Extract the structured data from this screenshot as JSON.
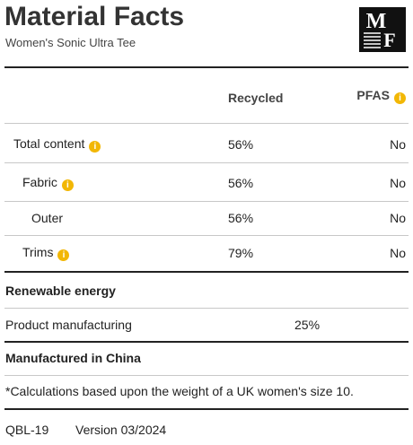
{
  "header": {
    "title": "Material Facts",
    "subtitle": "Women's Sonic Ultra Tee",
    "logo": [
      "M",
      "F"
    ]
  },
  "table": {
    "columns": [
      "Recycled",
      "PFAS"
    ],
    "rows": [
      [
        "Total content",
        "56%",
        "No"
      ],
      [
        "Fabric",
        "56%",
        "No"
      ],
      [
        "Outer",
        "56%",
        "No"
      ],
      [
        "Trims",
        "79%",
        "No"
      ]
    ]
  },
  "renewable": {
    "title": "Renewable energy",
    "rows": [
      [
        "Product manufacturing",
        "25%"
      ]
    ]
  },
  "origin": "Manufactured in China",
  "footnote": "*Calculations based upon the weight of a UK women's size 10.",
  "footer": [
    "QBL-19",
    "Version 03/2024"
  ]
}
